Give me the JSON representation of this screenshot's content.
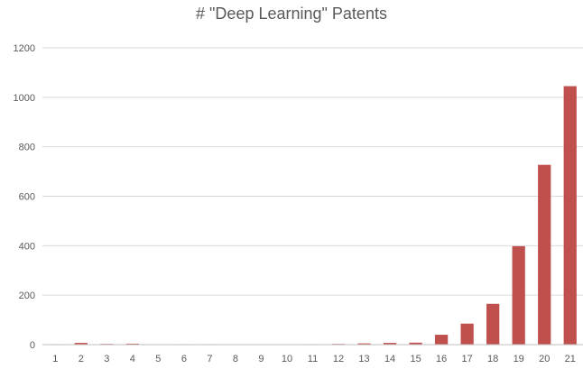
{
  "chart_data": {
    "type": "bar",
    "title": "# \"Deep Learning\" Patents",
    "xlabel": "",
    "ylabel": "",
    "categories": [
      "1",
      "2",
      "3",
      "4",
      "5",
      "6",
      "7",
      "8",
      "9",
      "10",
      "11",
      "12",
      "13",
      "14",
      "15",
      "16",
      "17",
      "18",
      "19",
      "20",
      "21"
    ],
    "values": [
      2,
      7,
      3,
      4,
      1,
      2,
      2,
      0,
      0,
      0,
      2,
      3,
      5,
      7,
      8,
      40,
      85,
      165,
      398,
      727,
      1045
    ],
    "ylim": [
      0,
      1200
    ],
    "yticks": [
      "0",
      "200",
      "400",
      "600",
      "800",
      "1000",
      "1200"
    ],
    "grid": true,
    "bar_color": "#c0504d",
    "grid_color": "#d9d9d9",
    "axis_color": "#bfbfbf",
    "text_color": "#595959"
  }
}
